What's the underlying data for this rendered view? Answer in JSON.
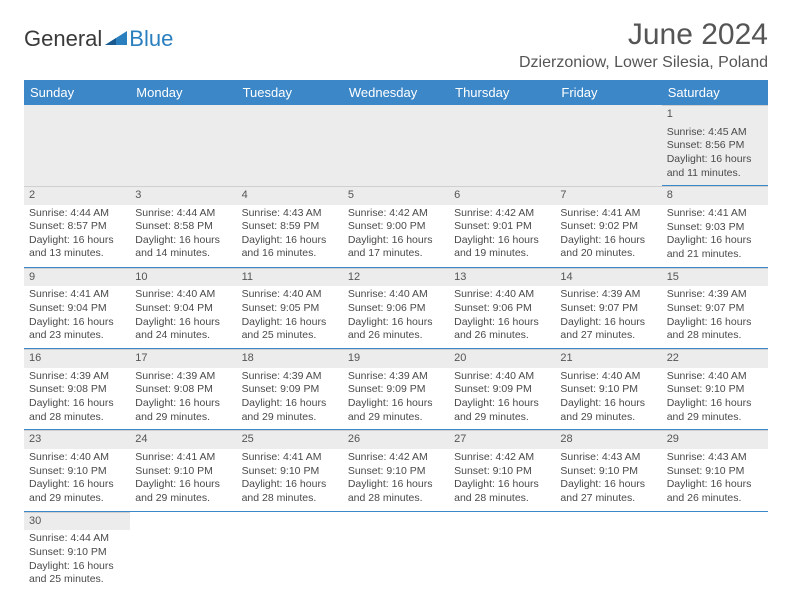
{
  "logo": {
    "general": "General",
    "blue": "Blue"
  },
  "title": "June 2024",
  "subtitle": "Dzierzoniow, Lower Silesia, Poland",
  "colors": {
    "header_bg": "#3c87c7",
    "header_text": "#ffffff",
    "daynum_bg": "#ececec",
    "border": "#3c87c7",
    "text": "#4a4a4a",
    "title": "#555555"
  },
  "weekdays": [
    "Sunday",
    "Monday",
    "Tuesday",
    "Wednesday",
    "Thursday",
    "Friday",
    "Saturday"
  ],
  "weeks": [
    [
      null,
      null,
      null,
      null,
      null,
      null,
      {
        "n": "1",
        "sr": "Sunrise: 4:45 AM",
        "ss": "Sunset: 8:56 PM",
        "dl1": "Daylight: 16 hours",
        "dl2": "and 11 minutes."
      }
    ],
    [
      {
        "n": "2",
        "sr": "Sunrise: 4:44 AM",
        "ss": "Sunset: 8:57 PM",
        "dl1": "Daylight: 16 hours",
        "dl2": "and 13 minutes."
      },
      {
        "n": "3",
        "sr": "Sunrise: 4:44 AM",
        "ss": "Sunset: 8:58 PM",
        "dl1": "Daylight: 16 hours",
        "dl2": "and 14 minutes."
      },
      {
        "n": "4",
        "sr": "Sunrise: 4:43 AM",
        "ss": "Sunset: 8:59 PM",
        "dl1": "Daylight: 16 hours",
        "dl2": "and 16 minutes."
      },
      {
        "n": "5",
        "sr": "Sunrise: 4:42 AM",
        "ss": "Sunset: 9:00 PM",
        "dl1": "Daylight: 16 hours",
        "dl2": "and 17 minutes."
      },
      {
        "n": "6",
        "sr": "Sunrise: 4:42 AM",
        "ss": "Sunset: 9:01 PM",
        "dl1": "Daylight: 16 hours",
        "dl2": "and 19 minutes."
      },
      {
        "n": "7",
        "sr": "Sunrise: 4:41 AM",
        "ss": "Sunset: 9:02 PM",
        "dl1": "Daylight: 16 hours",
        "dl2": "and 20 minutes."
      },
      {
        "n": "8",
        "sr": "Sunrise: 4:41 AM",
        "ss": "Sunset: 9:03 PM",
        "dl1": "Daylight: 16 hours",
        "dl2": "and 21 minutes."
      }
    ],
    [
      {
        "n": "9",
        "sr": "Sunrise: 4:41 AM",
        "ss": "Sunset: 9:04 PM",
        "dl1": "Daylight: 16 hours",
        "dl2": "and 23 minutes."
      },
      {
        "n": "10",
        "sr": "Sunrise: 4:40 AM",
        "ss": "Sunset: 9:04 PM",
        "dl1": "Daylight: 16 hours",
        "dl2": "and 24 minutes."
      },
      {
        "n": "11",
        "sr": "Sunrise: 4:40 AM",
        "ss": "Sunset: 9:05 PM",
        "dl1": "Daylight: 16 hours",
        "dl2": "and 25 minutes."
      },
      {
        "n": "12",
        "sr": "Sunrise: 4:40 AM",
        "ss": "Sunset: 9:06 PM",
        "dl1": "Daylight: 16 hours",
        "dl2": "and 26 minutes."
      },
      {
        "n": "13",
        "sr": "Sunrise: 4:40 AM",
        "ss": "Sunset: 9:06 PM",
        "dl1": "Daylight: 16 hours",
        "dl2": "and 26 minutes."
      },
      {
        "n": "14",
        "sr": "Sunrise: 4:39 AM",
        "ss": "Sunset: 9:07 PM",
        "dl1": "Daylight: 16 hours",
        "dl2": "and 27 minutes."
      },
      {
        "n": "15",
        "sr": "Sunrise: 4:39 AM",
        "ss": "Sunset: 9:07 PM",
        "dl1": "Daylight: 16 hours",
        "dl2": "and 28 minutes."
      }
    ],
    [
      {
        "n": "16",
        "sr": "Sunrise: 4:39 AM",
        "ss": "Sunset: 9:08 PM",
        "dl1": "Daylight: 16 hours",
        "dl2": "and 28 minutes."
      },
      {
        "n": "17",
        "sr": "Sunrise: 4:39 AM",
        "ss": "Sunset: 9:08 PM",
        "dl1": "Daylight: 16 hours",
        "dl2": "and 29 minutes."
      },
      {
        "n": "18",
        "sr": "Sunrise: 4:39 AM",
        "ss": "Sunset: 9:09 PM",
        "dl1": "Daylight: 16 hours",
        "dl2": "and 29 minutes."
      },
      {
        "n": "19",
        "sr": "Sunrise: 4:39 AM",
        "ss": "Sunset: 9:09 PM",
        "dl1": "Daylight: 16 hours",
        "dl2": "and 29 minutes."
      },
      {
        "n": "20",
        "sr": "Sunrise: 4:40 AM",
        "ss": "Sunset: 9:09 PM",
        "dl1": "Daylight: 16 hours",
        "dl2": "and 29 minutes."
      },
      {
        "n": "21",
        "sr": "Sunrise: 4:40 AM",
        "ss": "Sunset: 9:10 PM",
        "dl1": "Daylight: 16 hours",
        "dl2": "and 29 minutes."
      },
      {
        "n": "22",
        "sr": "Sunrise: 4:40 AM",
        "ss": "Sunset: 9:10 PM",
        "dl1": "Daylight: 16 hours",
        "dl2": "and 29 minutes."
      }
    ],
    [
      {
        "n": "23",
        "sr": "Sunrise: 4:40 AM",
        "ss": "Sunset: 9:10 PM",
        "dl1": "Daylight: 16 hours",
        "dl2": "and 29 minutes."
      },
      {
        "n": "24",
        "sr": "Sunrise: 4:41 AM",
        "ss": "Sunset: 9:10 PM",
        "dl1": "Daylight: 16 hours",
        "dl2": "and 29 minutes."
      },
      {
        "n": "25",
        "sr": "Sunrise: 4:41 AM",
        "ss": "Sunset: 9:10 PM",
        "dl1": "Daylight: 16 hours",
        "dl2": "and 28 minutes."
      },
      {
        "n": "26",
        "sr": "Sunrise: 4:42 AM",
        "ss": "Sunset: 9:10 PM",
        "dl1": "Daylight: 16 hours",
        "dl2": "and 28 minutes."
      },
      {
        "n": "27",
        "sr": "Sunrise: 4:42 AM",
        "ss": "Sunset: 9:10 PM",
        "dl1": "Daylight: 16 hours",
        "dl2": "and 28 minutes."
      },
      {
        "n": "28",
        "sr": "Sunrise: 4:43 AM",
        "ss": "Sunset: 9:10 PM",
        "dl1": "Daylight: 16 hours",
        "dl2": "and 27 minutes."
      },
      {
        "n": "29",
        "sr": "Sunrise: 4:43 AM",
        "ss": "Sunset: 9:10 PM",
        "dl1": "Daylight: 16 hours",
        "dl2": "and 26 minutes."
      }
    ],
    [
      {
        "n": "30",
        "sr": "Sunrise: 4:44 AM",
        "ss": "Sunset: 9:10 PM",
        "dl1": "Daylight: 16 hours",
        "dl2": "and 25 minutes."
      },
      null,
      null,
      null,
      null,
      null,
      null
    ]
  ]
}
